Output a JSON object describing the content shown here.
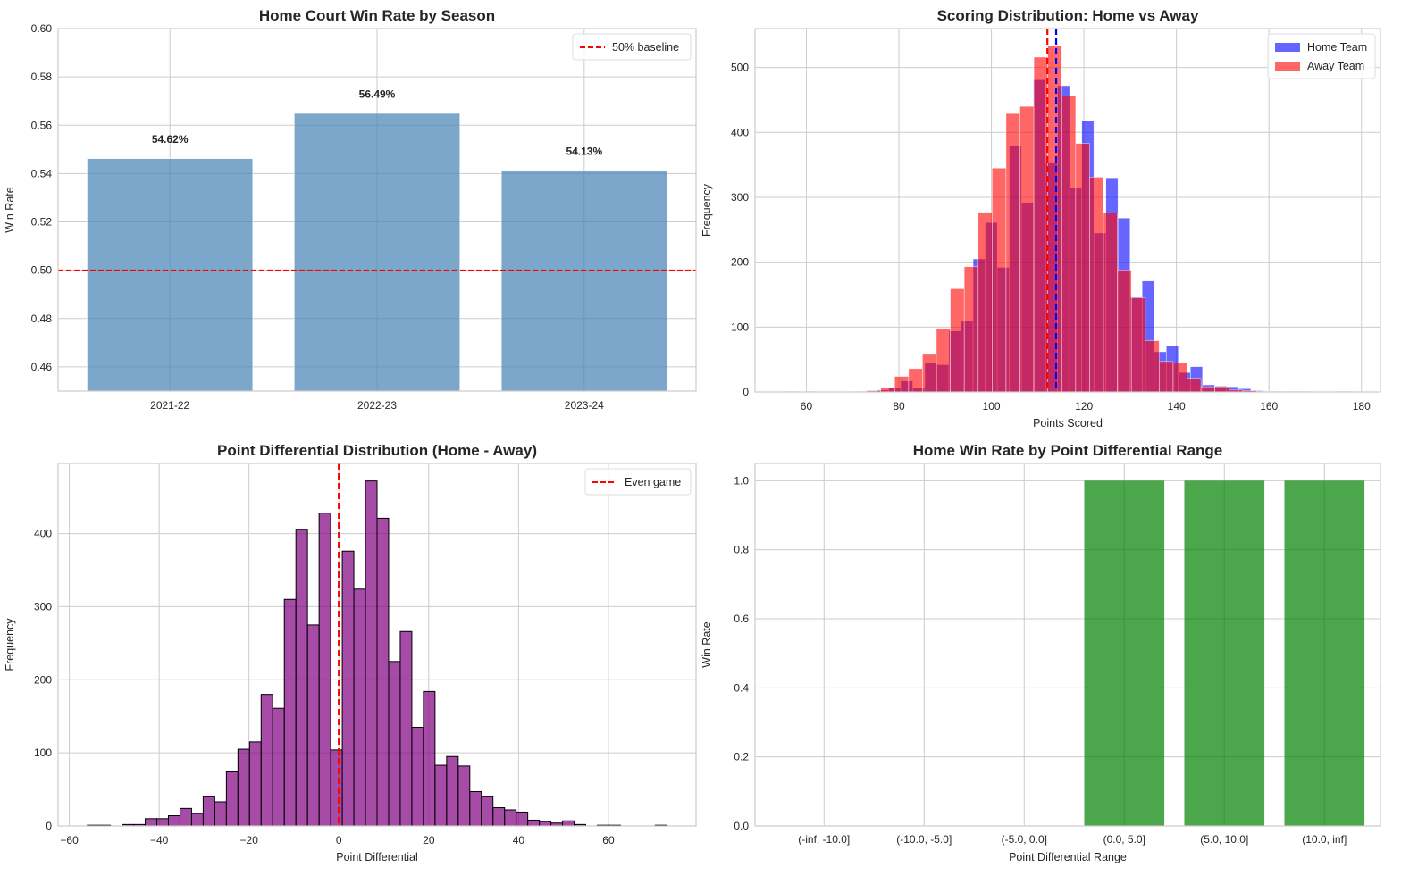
{
  "chart_data": [
    {
      "type": "bar",
      "title": "Home Court Win Rate by Season",
      "xlabel": "",
      "ylabel": "Win Rate",
      "categories": [
        "2021-22",
        "2022-23",
        "2023-24"
      ],
      "values": [
        0.5462,
        0.5649,
        0.5413
      ],
      "data_labels": [
        "54.62%",
        "56.49%",
        "54.13%"
      ],
      "color": "#4682b4",
      "ylim": [
        0.45,
        0.6
      ],
      "yticks": [
        "0.46",
        "0.48",
        "0.50",
        "0.52",
        "0.54",
        "0.56",
        "0.58",
        "0.60"
      ],
      "reference_line": {
        "y": 0.5,
        "label": "50% baseline",
        "color": "#ff0000",
        "style": "dashed"
      },
      "legend": "top-right",
      "grid": true
    },
    {
      "type": "histogram",
      "title": "Scoring Distribution: Home vs Away",
      "xlabel": "Points Scored",
      "ylabel": "Frequency",
      "xlim": [
        48.9,
        184.1
      ],
      "ylim": [
        0,
        560
      ],
      "xticks": [
        "60",
        "80",
        "100",
        "120",
        "140",
        "160",
        "180"
      ],
      "yticks": [
        "0",
        "100",
        "200",
        "300",
        "400",
        "500"
      ],
      "series": [
        {
          "name": "Home Team",
          "color": "#0000ff",
          "bin_start": 59.5,
          "bin_width": 2.61,
          "values": [
            1,
            0,
            0,
            0,
            0,
            1,
            3,
            7,
            17,
            6,
            45,
            42,
            94,
            109,
            205,
            261,
            192,
            380,
            292,
            481,
            354,
            472,
            315,
            418,
            245,
            330,
            268,
            146,
            171,
            62,
            71,
            30,
            39,
            11,
            9,
            8,
            5,
            2,
            1,
            0,
            1,
            0,
            0,
            0,
            1
          ],
          "mean": 114.0
        },
        {
          "name": "Away Team",
          "color": "#ff0000",
          "bin_start": 55.0,
          "bin_width": 3.01,
          "values": [
            1,
            0,
            0,
            0,
            0,
            1,
            2,
            7,
            24,
            36,
            58,
            98,
            159,
            193,
            277,
            345,
            429,
            440,
            516,
            533,
            456,
            383,
            331,
            276,
            188,
            145,
            79,
            47,
            45,
            21,
            8,
            8,
            3,
            2,
            1,
            1,
            0,
            1,
            0,
            0,
            1
          ],
          "mean": 112.1
        }
      ],
      "legend": "top-right",
      "grid": true
    },
    {
      "type": "histogram",
      "title": "Point Differential Distribution (Home - Away)",
      "xlabel": "Point Differential",
      "ylabel": "Frequency",
      "xlim": [
        -62.5,
        79.5
      ],
      "ylim": [
        0,
        496
      ],
      "xticks": [
        "−60",
        "−40",
        "−20",
        "0",
        "20",
        "40",
        "60"
      ],
      "xtick_values": [
        -60,
        -40,
        -20,
        0,
        20,
        40,
        60
      ],
      "yticks": [
        "0",
        "100",
        "200",
        "300",
        "400"
      ],
      "color": "#800080",
      "bin_start": -56.0,
      "bin_width": 2.58,
      "values": [
        1,
        1,
        0,
        2,
        2,
        10,
        10,
        14,
        24,
        17,
        40,
        33,
        74,
        105,
        115,
        180,
        161,
        310,
        406,
        275,
        428,
        104,
        376,
        324,
        472,
        421,
        225,
        266,
        135,
        184,
        83,
        95,
        82,
        47,
        40,
        25,
        22,
        19,
        8,
        6,
        4,
        7,
        2,
        0,
        1,
        1,
        0,
        0,
        0,
        1
      ],
      "reference_line": {
        "x": 0,
        "label": "Even game",
        "color": "#ff0000",
        "style": "dashed"
      },
      "legend": "top-right",
      "grid": true
    },
    {
      "type": "bar",
      "title": "Home Win Rate by Point Differential Range",
      "xlabel": "Point Differential Range",
      "ylabel": "Win Rate",
      "categories": [
        "(-inf, -10.0]",
        "(-10.0, -5.0]",
        "(-5.0, 0.0]",
        "(0.0, 5.0]",
        "(5.0, 10.0]",
        "(10.0, inf]"
      ],
      "values": [
        0,
        0,
        0,
        1.0,
        1.0,
        1.0
      ],
      "color": "#008000",
      "ylim": [
        0,
        1.05
      ],
      "yticks": [
        "0.0",
        "0.2",
        "0.4",
        "0.6",
        "0.8",
        "1.0"
      ],
      "grid": true
    }
  ]
}
